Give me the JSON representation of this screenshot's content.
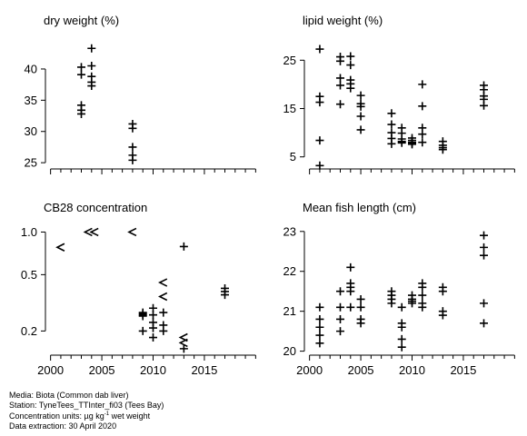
{
  "chart_data": [
    {
      "type": "scatter",
      "title": "dry weight (%)",
      "ylim": [
        24,
        44.5
      ],
      "xlim": [
        1999.5,
        2020.5
      ],
      "yticks": [
        25,
        30,
        35,
        40
      ],
      "ytick_labels": [
        "25",
        "30",
        "35",
        "40"
      ],
      "points": [
        {
          "x": 2003,
          "y": 40.3,
          "m": "+"
        },
        {
          "x": 2003,
          "y": 39.1,
          "m": "+"
        },
        {
          "x": 2003,
          "y": 34.2,
          "m": "+"
        },
        {
          "x": 2003,
          "y": 33.4,
          "m": "+"
        },
        {
          "x": 2003,
          "y": 32.8,
          "m": "+"
        },
        {
          "x": 2004,
          "y": 43.3,
          "m": "+"
        },
        {
          "x": 2004,
          "y": 40.5,
          "m": "+"
        },
        {
          "x": 2004,
          "y": 38.8,
          "m": "+"
        },
        {
          "x": 2004,
          "y": 37.9,
          "m": "+"
        },
        {
          "x": 2004,
          "y": 37.3,
          "m": "+"
        },
        {
          "x": 2008,
          "y": 31.2,
          "m": "+"
        },
        {
          "x": 2008,
          "y": 30.5,
          "m": "+"
        },
        {
          "x": 2008,
          "y": 27.5,
          "m": "+"
        },
        {
          "x": 2008,
          "y": 26.2,
          "m": "+"
        },
        {
          "x": 2008,
          "y": 25.4,
          "m": "+"
        }
      ]
    },
    {
      "type": "scatter",
      "title": "lipid weight (%)",
      "ylim": [
        2.5,
        29
      ],
      "xlim": [
        1999.5,
        2020.5
      ],
      "yticks": [
        5,
        15,
        25
      ],
      "ytick_labels": [
        "5",
        "15",
        "25"
      ],
      "points": [
        {
          "x": 2001,
          "y": 27.3,
          "m": "+"
        },
        {
          "x": 2001,
          "y": 17.5,
          "m": "+"
        },
        {
          "x": 2001,
          "y": 16.3,
          "m": "+"
        },
        {
          "x": 2001,
          "y": 8.4,
          "m": "+"
        },
        {
          "x": 2001,
          "y": 3.2,
          "m": "+"
        },
        {
          "x": 2003,
          "y": 25.7,
          "m": "+"
        },
        {
          "x": 2003,
          "y": 24.8,
          "m": "+"
        },
        {
          "x": 2003,
          "y": 21.3,
          "m": "+"
        },
        {
          "x": 2003,
          "y": 19.8,
          "m": "+"
        },
        {
          "x": 2003,
          "y": 15.9,
          "m": "+"
        },
        {
          "x": 2004,
          "y": 25.8,
          "m": "+"
        },
        {
          "x": 2004,
          "y": 24.0,
          "m": "+"
        },
        {
          "x": 2004,
          "y": 20.9,
          "m": "+"
        },
        {
          "x": 2004,
          "y": 20.1,
          "m": "+"
        },
        {
          "x": 2004,
          "y": 19.2,
          "m": "+"
        },
        {
          "x": 2005,
          "y": 17.7,
          "m": "+"
        },
        {
          "x": 2005,
          "y": 16.0,
          "m": "+"
        },
        {
          "x": 2005,
          "y": 15.4,
          "m": "+"
        },
        {
          "x": 2005,
          "y": 13.4,
          "m": "+"
        },
        {
          "x": 2005,
          "y": 10.6,
          "m": "+"
        },
        {
          "x": 2008,
          "y": 14.0,
          "m": "+"
        },
        {
          "x": 2008,
          "y": 11.7,
          "m": "+"
        },
        {
          "x": 2008,
          "y": 10.0,
          "m": "+"
        },
        {
          "x": 2008,
          "y": 8.8,
          "m": "+"
        },
        {
          "x": 2008,
          "y": 7.7,
          "m": "+"
        },
        {
          "x": 2009,
          "y": 11.0,
          "m": "+"
        },
        {
          "x": 2009,
          "y": 9.9,
          "m": "+"
        },
        {
          "x": 2009,
          "y": 8.7,
          "m": "+"
        },
        {
          "x": 2009,
          "y": 8.2,
          "m": "+"
        },
        {
          "x": 2009,
          "y": 7.9,
          "m": "+"
        },
        {
          "x": 2010,
          "y": 8.9,
          "m": "+"
        },
        {
          "x": 2010,
          "y": 8.4,
          "m": "+"
        },
        {
          "x": 2010,
          "y": 8.0,
          "m": "+"
        },
        {
          "x": 2010,
          "y": 7.8,
          "m": "+"
        },
        {
          "x": 2010,
          "y": 7.6,
          "m": "+"
        },
        {
          "x": 2011,
          "y": 20.0,
          "m": "+"
        },
        {
          "x": 2011,
          "y": 15.5,
          "m": "+"
        },
        {
          "x": 2011,
          "y": 11.0,
          "m": "+"
        },
        {
          "x": 2011,
          "y": 9.7,
          "m": "+"
        },
        {
          "x": 2011,
          "y": 8.0,
          "m": "+"
        },
        {
          "x": 2013,
          "y": 8.2,
          "m": "+"
        },
        {
          "x": 2013,
          "y": 7.4,
          "m": "+"
        },
        {
          "x": 2013,
          "y": 6.9,
          "m": "+"
        },
        {
          "x": 2013,
          "y": 6.5,
          "m": "+"
        },
        {
          "x": 2017,
          "y": 19.8,
          "m": "+"
        },
        {
          "x": 2017,
          "y": 18.9,
          "m": "+"
        },
        {
          "x": 2017,
          "y": 17.6,
          "m": "+"
        },
        {
          "x": 2017,
          "y": 16.9,
          "m": "+"
        },
        {
          "x": 2017,
          "y": 15.6,
          "m": "+"
        }
      ]
    },
    {
      "type": "scatter",
      "title": "CB28 concentration",
      "yscale": "log",
      "ylim": [
        0.135,
        1.15
      ],
      "xlim": [
        1999.5,
        2020.5
      ],
      "yticks": [
        0.2,
        0.5,
        1.0
      ],
      "ytick_labels": [
        "0.2",
        "0.5",
        "1.0"
      ],
      "points": [
        {
          "x": 2001,
          "y": 0.78,
          "m": "<"
        },
        {
          "x": 2003.7,
          "y": 1.0,
          "m": "<"
        },
        {
          "x": 2004.3,
          "y": 1.0,
          "m": "<"
        },
        {
          "x": 2008,
          "y": 1.0,
          "m": "<"
        },
        {
          "x": 2009,
          "y": 0.27,
          "m": "+"
        },
        {
          "x": 2009,
          "y": 0.265,
          "m": "+"
        },
        {
          "x": 2009,
          "y": 0.26,
          "m": "+"
        },
        {
          "x": 2009,
          "y": 0.255,
          "m": "+"
        },
        {
          "x": 2009,
          "y": 0.2,
          "m": "+"
        },
        {
          "x": 2010,
          "y": 0.29,
          "m": "+"
        },
        {
          "x": 2010,
          "y": 0.26,
          "m": "+"
        },
        {
          "x": 2010,
          "y": 0.23,
          "m": "+"
        },
        {
          "x": 2010,
          "y": 0.21,
          "m": "+"
        },
        {
          "x": 2010,
          "y": 0.18,
          "m": "+"
        },
        {
          "x": 2011,
          "y": 0.44,
          "m": "<"
        },
        {
          "x": 2011,
          "y": 0.35,
          "m": "<"
        },
        {
          "x": 2011,
          "y": 0.27,
          "m": "+"
        },
        {
          "x": 2011,
          "y": 0.22,
          "m": "+"
        },
        {
          "x": 2011,
          "y": 0.2,
          "m": "+"
        },
        {
          "x": 2013,
          "y": 0.79,
          "m": "+"
        },
        {
          "x": 2013,
          "y": 0.18,
          "m": "<"
        },
        {
          "x": 2013,
          "y": 0.165,
          "m": "<"
        },
        {
          "x": 2013,
          "y": 0.15,
          "m": "+"
        },
        {
          "x": 2017,
          "y": 0.4,
          "m": "+"
        },
        {
          "x": 2017,
          "y": 0.38,
          "m": "+"
        },
        {
          "x": 2017,
          "y": 0.36,
          "m": "+"
        }
      ]
    },
    {
      "type": "scatter",
      "title": "Mean fish length (cm)",
      "ylim": [
        19.9,
        23.2
      ],
      "xlim": [
        1999.5,
        2020.5
      ],
      "yticks": [
        20,
        21,
        22,
        23
      ],
      "ytick_labels": [
        "20",
        "21",
        "22",
        "23"
      ],
      "points": [
        {
          "x": 2001,
          "y": 21.1,
          "m": "+"
        },
        {
          "x": 2001,
          "y": 20.8,
          "m": "+"
        },
        {
          "x": 2001,
          "y": 20.6,
          "m": "+"
        },
        {
          "x": 2001,
          "y": 20.4,
          "m": "+"
        },
        {
          "x": 2001,
          "y": 20.2,
          "m": "+"
        },
        {
          "x": 2003,
          "y": 21.5,
          "m": "+"
        },
        {
          "x": 2003,
          "y": 21.1,
          "m": "+"
        },
        {
          "x": 2003,
          "y": 20.8,
          "m": "+"
        },
        {
          "x": 2003,
          "y": 20.5,
          "m": "+"
        },
        {
          "x": 2004,
          "y": 22.1,
          "m": "+"
        },
        {
          "x": 2004,
          "y": 21.7,
          "m": "+"
        },
        {
          "x": 2004,
          "y": 21.6,
          "m": "+"
        },
        {
          "x": 2004,
          "y": 21.5,
          "m": "+"
        },
        {
          "x": 2004,
          "y": 21.1,
          "m": "+"
        },
        {
          "x": 2005,
          "y": 21.3,
          "m": "+"
        },
        {
          "x": 2005,
          "y": 21.1,
          "m": "+"
        },
        {
          "x": 2005,
          "y": 20.8,
          "m": "+"
        },
        {
          "x": 2005,
          "y": 20.7,
          "m": "+"
        },
        {
          "x": 2008,
          "y": 21.5,
          "m": "+"
        },
        {
          "x": 2008,
          "y": 21.4,
          "m": "+"
        },
        {
          "x": 2008,
          "y": 21.3,
          "m": "+"
        },
        {
          "x": 2008,
          "y": 21.2,
          "m": "+"
        },
        {
          "x": 2009,
          "y": 21.1,
          "m": "+"
        },
        {
          "x": 2009,
          "y": 20.7,
          "m": "+"
        },
        {
          "x": 2009,
          "y": 20.6,
          "m": "+"
        },
        {
          "x": 2009,
          "y": 20.3,
          "m": "+"
        },
        {
          "x": 2009,
          "y": 20.1,
          "m": "+"
        },
        {
          "x": 2010,
          "y": 21.4,
          "m": "+"
        },
        {
          "x": 2010,
          "y": 21.3,
          "m": "+"
        },
        {
          "x": 2010,
          "y": 21.25,
          "m": "+"
        },
        {
          "x": 2010,
          "y": 21.2,
          "m": "+"
        },
        {
          "x": 2011,
          "y": 21.7,
          "m": "+"
        },
        {
          "x": 2011,
          "y": 21.6,
          "m": "+"
        },
        {
          "x": 2011,
          "y": 21.4,
          "m": "+"
        },
        {
          "x": 2011,
          "y": 21.2,
          "m": "+"
        },
        {
          "x": 2011,
          "y": 21.1,
          "m": "+"
        },
        {
          "x": 2013,
          "y": 21.6,
          "m": "+"
        },
        {
          "x": 2013,
          "y": 21.5,
          "m": "+"
        },
        {
          "x": 2013,
          "y": 21.0,
          "m": "+"
        },
        {
          "x": 2013,
          "y": 20.9,
          "m": "+"
        },
        {
          "x": 2017,
          "y": 22.9,
          "m": "+"
        },
        {
          "x": 2017,
          "y": 22.6,
          "m": "+"
        },
        {
          "x": 2017,
          "y": 22.4,
          "m": "+"
        },
        {
          "x": 2017,
          "y": 21.2,
          "m": "+"
        },
        {
          "x": 2017,
          "y": 20.7,
          "m": "+"
        }
      ]
    }
  ],
  "x_axis": {
    "ticks": [
      2000,
      2005,
      2010,
      2015
    ],
    "tick_labels": [
      "2000",
      "2005",
      "2010",
      "2015"
    ],
    "minor_ticks": [
      2000,
      2001,
      2002,
      2003,
      2004,
      2005,
      2006,
      2007,
      2008,
      2009,
      2010,
      2011,
      2012,
      2013,
      2014,
      2015,
      2016,
      2017,
      2018,
      2019,
      2020
    ]
  },
  "footer": {
    "media": "Media: Biota (Common dab liver)",
    "station": "Station: TyneTees_TTInter_fi03 (Tees Bay)",
    "units_prefix": "Concentration units:  µg kg",
    "units_sup": "-1",
    "units_suffix": " wet weight",
    "extraction": "Data extraction: 30 April 2020"
  }
}
